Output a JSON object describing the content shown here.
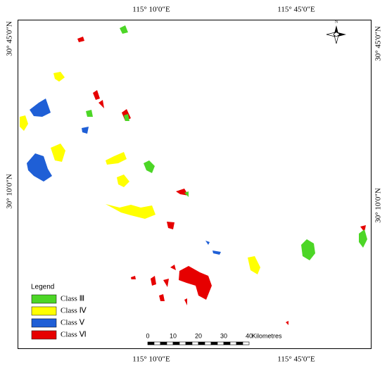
{
  "map": {
    "coordinates": {
      "top": [
        "115° 10′0″E",
        "115° 45′0″E"
      ],
      "bottom": [
        "115° 10′0″E",
        "115° 45′0″E"
      ],
      "left": [
        "30° 45′0″N",
        "30° 10′0″N"
      ],
      "right": [
        "30° 45′0″N",
        "30° 10′0″N"
      ]
    },
    "north_arrow": "N",
    "legend": {
      "title": "Legend",
      "items": [
        {
          "label": "Class Ⅲ",
          "color": "#4cd626"
        },
        {
          "label": "Class Ⅳ",
          "color": "#ffff00"
        },
        {
          "label": "Class Ⅴ",
          "color": "#1f5fd6"
        },
        {
          "label": "Class Ⅵ",
          "color": "#e60000"
        }
      ]
    },
    "scale_bar": {
      "ticks": [
        0,
        10,
        20,
        30,
        40
      ],
      "unit": "Kilometres"
    }
  }
}
